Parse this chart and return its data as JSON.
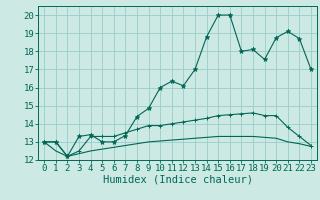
{
  "title": "",
  "xlabel": "Humidex (Indice chaleur)",
  "xlim": [
    -0.5,
    23.5
  ],
  "ylim": [
    12,
    20.5
  ],
  "yticks": [
    12,
    13,
    14,
    15,
    16,
    17,
    18,
    19,
    20
  ],
  "xticks": [
    0,
    1,
    2,
    3,
    4,
    5,
    6,
    7,
    8,
    9,
    10,
    11,
    12,
    13,
    14,
    15,
    16,
    17,
    18,
    19,
    20,
    21,
    22,
    23
  ],
  "bg_color": "#cce9e4",
  "line_color": "#006655",
  "grid_color": "#99cccc",
  "line1_x": [
    0,
    1,
    2,
    3,
    4,
    5,
    6,
    7,
    8,
    9,
    10,
    11,
    12,
    13,
    14,
    15,
    16,
    17,
    18,
    19,
    20,
    21,
    22,
    23
  ],
  "line1_y": [
    13.0,
    13.0,
    12.2,
    13.3,
    13.4,
    13.0,
    13.0,
    13.35,
    14.4,
    14.85,
    16.0,
    16.35,
    16.1,
    17.0,
    18.8,
    20.0,
    20.0,
    18.0,
    18.1,
    17.55,
    18.75,
    19.1,
    18.7,
    17.0
  ],
  "line2_x": [
    0,
    1,
    2,
    3,
    4,
    5,
    6,
    7,
    8,
    9,
    10,
    11,
    12,
    13,
    14,
    15,
    16,
    17,
    18,
    19,
    20,
    21,
    22,
    23
  ],
  "line2_y": [
    13.0,
    13.0,
    12.2,
    12.5,
    13.3,
    13.3,
    13.3,
    13.5,
    13.7,
    13.9,
    13.9,
    14.0,
    14.1,
    14.2,
    14.3,
    14.45,
    14.5,
    14.55,
    14.6,
    14.45,
    14.45,
    13.8,
    13.3,
    12.8
  ],
  "line3_x": [
    0,
    1,
    2,
    3,
    4,
    5,
    6,
    7,
    8,
    9,
    10,
    11,
    12,
    13,
    14,
    15,
    16,
    17,
    18,
    19,
    20,
    21,
    22,
    23
  ],
  "line3_y": [
    13.0,
    12.5,
    12.2,
    12.35,
    12.5,
    12.6,
    12.7,
    12.8,
    12.9,
    13.0,
    13.05,
    13.1,
    13.15,
    13.2,
    13.25,
    13.3,
    13.3,
    13.3,
    13.3,
    13.25,
    13.2,
    13.0,
    12.9,
    12.75
  ],
  "tick_fontsize": 6.5,
  "label_fontsize": 7.5
}
